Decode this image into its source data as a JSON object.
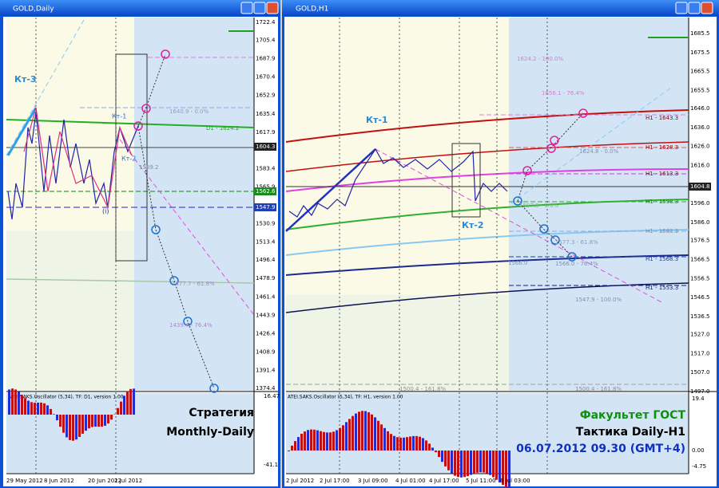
{
  "windows": [
    {
      "title": "GOLD,Daily",
      "price_labels": [
        "1722.4",
        "1705.4",
        "1687.9",
        "1670.4",
        "1652.9",
        "1635.4",
        "1617.9",
        "1583.4",
        "1565.9",
        "1530.9",
        "1513.4",
        "1496.4",
        "1478.9",
        "1461.4",
        "1443.9",
        "1426.4",
        "1408.9",
        "1391.4",
        "1374.4"
      ],
      "current_prices": [
        "1604.3",
        "1562.6",
        "1547.9"
      ],
      "annotations": [
        "Кт-3",
        "Кт-1",
        "Кт-2",
        "1640.9 - 0.0%",
        "D1 - 1624.2",
        "1589.2",
        "(i)",
        "1477.7 - 61.8%",
        "1439.4 - 76.4%"
      ],
      "oscillator": {
        "title": "ATEI.SAKS.Oscillator (5,34), TF: D1, version 1.00",
        "scale": [
          "16.47",
          "-41.1"
        ]
      },
      "dates": [
        "29 May 2012",
        "8 Jun 2012",
        "20 Jun 2012",
        "2 Jul 2012"
      ],
      "overlay": [
        "Стратегия",
        "Monthly-Daily"
      ]
    },
    {
      "title": "GOLD,H1",
      "price_labels": [
        "1685.5",
        "1675.5",
        "1665.5",
        "1655.5",
        "1646.0",
        "1636.0",
        "1626.0",
        "1616.0",
        "1596.0",
        "1586.0",
        "1576.5",
        "1566.5",
        "1556.5",
        "1546.5",
        "1536.5",
        "1527.0",
        "1517.0",
        "1507.0",
        "1497.0"
      ],
      "current_prices": [
        "1604.8"
      ],
      "annotations": [
        "Кт-1",
        "Кт-2",
        "H1 - 1643.3",
        "H1 - 1628.3",
        "H1 - 1613.3",
        "H1 - 1598.3",
        "H1 - 1583.3",
        "H1 - 1568.3",
        "H1 - 1553.3",
        "1624.2 - 100.0%",
        "1656.1 - 76.4%",
        "1624.8 - 0.0%",
        "1597.3 - 0.0%",
        "1577.3 - 61.8%",
        "1566.0 - 76.4%",
        "1566.0",
        "1547.9 - 100.0%",
        "1500.4 - 161.8%",
        "1500.4 - 161.8%"
      ],
      "oscillator": {
        "title": "ATEI.SAKS.Oscillator (5,34), TF: H1, version 1.00",
        "scale": [
          "19.4",
          "0.00",
          "-4.75"
        ]
      },
      "dates": [
        "2 Jul 2012",
        "2 Jul 17:00",
        "3 Jul 09:00",
        "4 Jul 01:00",
        "4 Jul 17:00",
        "5 Jul 11:00",
        "6 Jul 03:00"
      ],
      "overlay": [
        "Факультет ГОСТ",
        "Тактика Daily-H1",
        "06.07.2012  09.30 (GMT+4)"
      ]
    }
  ]
}
